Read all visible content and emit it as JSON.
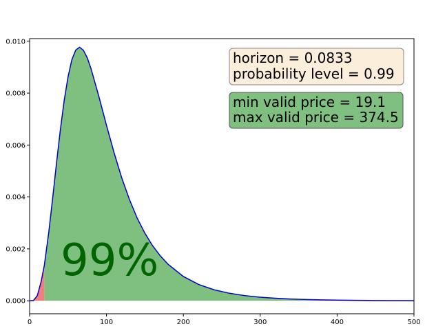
{
  "chart_data": {
    "type": "area",
    "title": "",
    "xlabel": "",
    "ylabel": "",
    "xlim": [
      0,
      500
    ],
    "ylim": [
      -0.0005,
      0.0101
    ],
    "grid": false,
    "x_ticks": [
      0,
      100,
      200,
      300,
      400,
      500
    ],
    "x_tick_labels": [
      "0",
      "100",
      "200",
      "300",
      "400",
      "500"
    ],
    "y_ticks": [
      0.0,
      0.002,
      0.004,
      0.006,
      0.008,
      0.01
    ],
    "y_tick_labels": [
      "0.000",
      "0.002",
      "0.004",
      "0.006",
      "0.008",
      "0.010"
    ],
    "series": [
      {
        "type": "line",
        "color": "#0000cc",
        "x": [
          0,
          5,
          10,
          15,
          19.1,
          25,
          30,
          35,
          40,
          45,
          50,
          55,
          60,
          65,
          70,
          75,
          80,
          90,
          100,
          110,
          120,
          130,
          140,
          150,
          160,
          170,
          180,
          200,
          220,
          240,
          260,
          280,
          300,
          320,
          340,
          360,
          374.5,
          400,
          450,
          500
        ],
        "y": [
          0,
          1.09e-05,
          0.000197,
          0.00074,
          0.00136,
          0.00266,
          0.00396,
          0.00531,
          0.00659,
          0.00772,
          0.00863,
          0.00929,
          0.00966,
          0.00977,
          0.00965,
          0.00936,
          0.00893,
          0.00788,
          0.00676,
          0.00569,
          0.00472,
          0.00389,
          0.00318,
          0.0026,
          0.00212,
          0.00173,
          0.00141,
          0.000936,
          0.000627,
          0.000424,
          0.000289,
          0.000199,
          0.000138,
          9.67e-05,
          6.81e-05,
          4.83e-05,
          3.74e-05,
          2.35e-05,
          8.63e-06,
          3.31e-06
        ]
      }
    ],
    "regions": [
      {
        "label": "below min valid price",
        "from": 0,
        "to": 19.1,
        "color": "#f08080"
      },
      {
        "label": "valid range",
        "from": 19.1,
        "to": 374.5,
        "color": "#7fbf7f"
      },
      {
        "label": "above max valid price",
        "from": 374.5,
        "to": 500,
        "color": "#f08080"
      }
    ],
    "annotations": {
      "horizon_line": "horizon = 0.0833",
      "probability_line": "probability level = 0.99",
      "min_price_line": "min valid price  = 19.1",
      "max_price_line": "max valid price = 374.5",
      "percentage": "99%"
    },
    "colors": {
      "curve": "#0000cc",
      "valid_fill": "#7fbf7f",
      "tail_fill": "#f08080",
      "box1_fill": "#fbeedb",
      "box2_fill": "#7fbf7f",
      "percentage_text": "#006400"
    }
  }
}
